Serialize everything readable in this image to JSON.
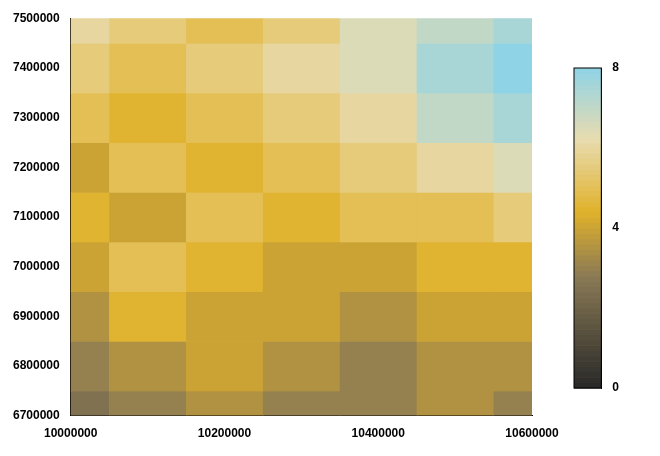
{
  "chart_data": {
    "type": "heatmap",
    "x": [
      10000000,
      10100000,
      10200000,
      10300000,
      10400000,
      10500000,
      10600000
    ],
    "y": [
      6700000,
      6800000,
      6900000,
      7000000,
      7100000,
      7200000,
      7300000,
      7400000,
      7500000
    ],
    "z": [
      [
        2.5,
        3,
        3.5,
        3,
        3,
        3.5,
        3
      ],
      [
        3,
        3.5,
        4,
        3.5,
        3,
        3.5,
        3.5
      ],
      [
        3.5,
        4.5,
        4,
        4,
        3.5,
        4,
        4
      ],
      [
        4,
        5,
        4.5,
        4,
        4,
        4.5,
        4.5
      ],
      [
        4.5,
        4,
        5,
        4.5,
        5,
        5,
        5.5
      ],
      [
        4,
        5,
        4.5,
        5,
        5.5,
        6,
        6.5
      ],
      [
        5,
        4.5,
        5,
        5.5,
        6,
        7,
        7.5
      ],
      [
        5.5,
        5,
        5.5,
        6,
        6.5,
        7.5,
        8
      ],
      [
        6,
        5.5,
        5,
        5.5,
        6.5,
        7,
        7.5
      ]
    ],
    "xlim": [
      10000000,
      10600000
    ],
    "xticks": [
      10000000,
      10200000,
      10400000,
      10600000
    ],
    "ylim": [
      6700000,
      7500000
    ],
    "yticks": [
      6700000,
      6800000,
      6900000,
      7000000,
      7100000,
      7200000,
      7300000,
      7400000,
      7500000
    ],
    "zlim": [
      0,
      8
    ],
    "zticks": [
      0,
      4,
      8
    ],
    "grid": false
  }
}
